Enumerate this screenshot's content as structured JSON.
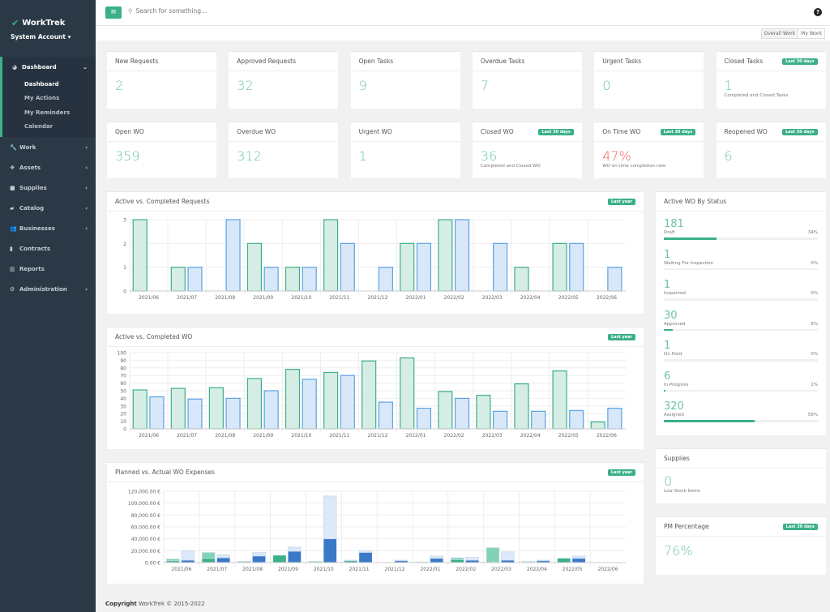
{
  "app": {
    "name": "WorkTrek",
    "account": "System Account"
  },
  "sidebar": {
    "items": [
      {
        "label": "Dashboard",
        "icon": "dashboard-icon",
        "expanded": true,
        "children": [
          "Dashboard",
          "My Actions",
          "My Reminders",
          "Calendar"
        ]
      },
      {
        "label": "Work",
        "icon": "wrench-icon"
      },
      {
        "label": "Assets",
        "icon": "cubes-icon"
      },
      {
        "label": "Supplies",
        "icon": "box-icon"
      },
      {
        "label": "Catalog",
        "icon": "book-icon"
      },
      {
        "label": "Businesses",
        "icon": "users-icon"
      },
      {
        "label": "Contracts",
        "icon": "file-icon"
      },
      {
        "label": "Reports",
        "icon": "bar-chart-icon"
      },
      {
        "label": "Administration",
        "icon": "gear-icon"
      }
    ]
  },
  "topbar": {
    "search_placeholder": "Search for something...",
    "help": "?",
    "menu": "≡"
  },
  "toggle": {
    "overall": "Overall Work",
    "mine": "My Work"
  },
  "kpis": [
    {
      "title": "New Requests",
      "value": "2"
    },
    {
      "title": "Approved Requests",
      "value": "32"
    },
    {
      "title": "Open Tasks",
      "value": "9"
    },
    {
      "title": "Overdue Tasks",
      "value": "7"
    },
    {
      "title": "Urgent Tasks",
      "value": "0"
    },
    {
      "title": "Closed Tasks",
      "value": "1",
      "badge": "Last 30 days",
      "sub": "Completed and Closed Tasks"
    },
    {
      "title": "Open WO",
      "value": "359"
    },
    {
      "title": "Overdue WO",
      "value": "312"
    },
    {
      "title": "Urgent WO",
      "value": "1"
    },
    {
      "title": "Closed WO",
      "value": "36",
      "badge": "Last 30 days",
      "sub": "Completed and Closed WO"
    },
    {
      "title": "On Time WO",
      "value": "47%",
      "badge": "Last 30 days",
      "sub": "WO on time completion rate",
      "color": "#ee5a5a"
    },
    {
      "title": "Reopened WO",
      "value": "6",
      "badge": "Last 30 days"
    }
  ],
  "status": {
    "title": "Active WO By Status",
    "items": [
      {
        "count": "181",
        "label": "Draft",
        "pct": "34%",
        "fill": 34
      },
      {
        "count": "1",
        "label": "Waiting For Inspection",
        "pct": "0%",
        "fill": 0
      },
      {
        "count": "1",
        "label": "Inspected",
        "pct": "0%",
        "fill": 0
      },
      {
        "count": "30",
        "label": "Approved",
        "pct": "6%",
        "fill": 6
      },
      {
        "count": "1",
        "label": "On Hold",
        "pct": "0%",
        "fill": 0
      },
      {
        "count": "6",
        "label": "In Progress",
        "pct": "1%",
        "fill": 1
      },
      {
        "count": "320",
        "label": "Assigned",
        "pct": "59%",
        "fill": 59
      }
    ]
  },
  "supplies": {
    "title": "Supplies",
    "value": "0",
    "sub": "Low Stock Items"
  },
  "pm": {
    "title": "PM Percentage",
    "badge": "Last 30 days",
    "value": "76%"
  },
  "footer": {
    "label": "Copyright",
    "text": "WorkTrek © 2015-2022"
  },
  "chart_data": [
    {
      "type": "bar",
      "title": "Active vs. Completed Requests",
      "badge": "Last year",
      "categories": [
        "2021/06",
        "2021/07",
        "2021/08",
        "2021/09",
        "2021/10",
        "2021/11",
        "2021/12",
        "2022/01",
        "2022/02",
        "2022/03",
        "2022/04",
        "2022/05",
        "2022/06"
      ],
      "ylim": [
        0,
        3
      ],
      "yticks": [
        "0",
        "1",
        "2",
        "3"
      ],
      "grid": true,
      "series": [
        {
          "values": [
            3,
            1,
            0,
            2,
            1,
            3,
            0,
            2,
            3,
            0,
            1,
            2,
            0
          ],
          "color": "#3bb08a"
        },
        {
          "values": [
            0,
            1,
            3,
            1,
            1,
            2,
            1,
            2,
            3,
            2,
            0,
            2,
            1
          ],
          "color": "#5aa3e6"
        }
      ]
    },
    {
      "type": "bar",
      "title": "Active vs. Completed WO",
      "badge": "Last year",
      "categories": [
        "2021/06",
        "2021/07",
        "2021/08",
        "2021/09",
        "2021/10",
        "2021/11",
        "2021/12",
        "2022/01",
        "2022/02",
        "2022/03",
        "2022/04",
        "2022/05",
        "2022/06"
      ],
      "ylim": [
        0,
        100
      ],
      "yticks": [
        "0",
        "10",
        "20",
        "30",
        "40",
        "50",
        "60",
        "70",
        "80",
        "90",
        "100"
      ],
      "grid": true,
      "series": [
        {
          "values": [
            51,
            53,
            54,
            66,
            78,
            74,
            89,
            93,
            49,
            44,
            59,
            76,
            9
          ],
          "color": "#3bb08a"
        },
        {
          "values": [
            42,
            39,
            40,
            50,
            65,
            70,
            35,
            27,
            40,
            23,
            23,
            24,
            27
          ],
          "color": "#5aa3e6"
        }
      ]
    },
    {
      "type": "bar",
      "stacked": true,
      "title": "Planned vs. Actual WO Expenses",
      "badge": "Last year",
      "categories": [
        "2021/06",
        "2021/07",
        "2021/08",
        "2021/09",
        "2021/10",
        "2021/11",
        "2021/12",
        "2022/01",
        "2022/02",
        "2022/03",
        "2022/04",
        "2022/05",
        "2022/06"
      ],
      "ylim": [
        0,
        120000
      ],
      "yticks": [
        "0.00 €",
        "20,000.00 €",
        "40,000.00 €",
        "60,000.00 €",
        "80,000.00 €",
        "100,000.00 €",
        "120,000.00 €"
      ],
      "grid": true,
      "stacks": [
        {
          "series": [
            {
              "values": [
                3000,
                7000,
                0,
                12000,
                0,
                3000,
                0,
                0,
                5000,
                0,
                1000,
                7000,
                0
              ],
              "color": "#3bb08a"
            },
            {
              "values": [
                3000,
                10000,
                2000,
                0,
                2000,
                1000,
                0,
                1000,
                3000,
                25000,
                1000,
                0,
                0
              ],
              "color": "#82d2b6"
            }
          ]
        },
        {
          "series": [
            {
              "values": [
                4000,
                8000,
                11000,
                19000,
                40000,
                17000,
                3000,
                7000,
                4000,
                4000,
                3000,
                7000,
                0
              ],
              "color": "#3a78c8"
            },
            {
              "values": [
                16000,
                5000,
                6000,
                7000,
                72000,
                3000,
                1000,
                4000,
                5000,
                14000,
                1000,
                4000,
                0
              ],
              "color": "#dbe9f8"
            }
          ]
        }
      ]
    }
  ]
}
